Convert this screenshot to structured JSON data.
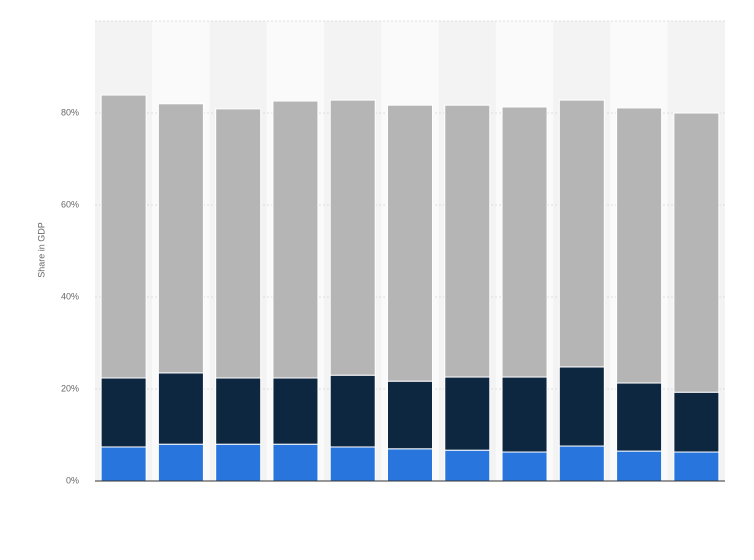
{
  "chart_data": {
    "type": "stacked_bar",
    "y_label": "Share in GDP",
    "categories": [
      null,
      null,
      null,
      null,
      null,
      null,
      null,
      null,
      null,
      null,
      null
    ],
    "series": [
      {
        "color": "#2876dd",
        "values": [
          7.4,
          8.0,
          8.0,
          8.0,
          7.4,
          7.0,
          6.7,
          6.3,
          7.6,
          6.5,
          6.3
        ]
      },
      {
        "color": "#0e2740",
        "values": [
          15.0,
          15.5,
          14.4,
          14.4,
          15.6,
          14.7,
          15.9,
          16.3,
          17.2,
          14.8,
          13.0
        ]
      },
      {
        "color": "#b5b5b5",
        "values": [
          61.5,
          58.5,
          58.5,
          60.2,
          59.8,
          60.0,
          59.1,
          58.7,
          58.0,
          59.8,
          60.7
        ]
      }
    ],
    "ylim": [
      0,
      100
    ],
    "yticks": [
      {
        "value": 0,
        "label": "0%"
      },
      {
        "value": 20,
        "label": "20%"
      },
      {
        "value": 40,
        "label": "40%"
      },
      {
        "value": 60,
        "label": "60%"
      },
      {
        "value": 80,
        "label": "80%"
      }
    ],
    "grid": true
  }
}
